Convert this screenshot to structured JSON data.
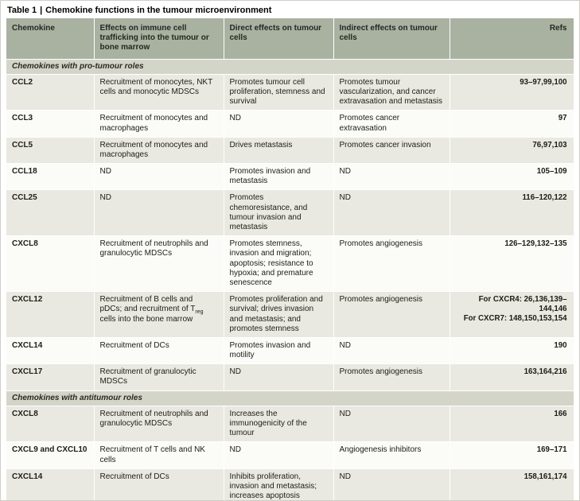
{
  "colors": {
    "header_bg": "#a9b2a1",
    "section_bg": "#d4d5c9",
    "row_shaded_bg": "#e9e9e1",
    "row_light_bg": "#fbfbf7"
  },
  "title": {
    "table_label": "Table 1",
    "separator": "|",
    "text": "Chemokine functions in the tumour microenvironment"
  },
  "table": {
    "headers": [
      "Chemokine",
      "Effects on immune cell trafficking into the tumour or bone marrow",
      "Direct effects on tumour cells",
      "Indirect effects on tumour cells",
      "Refs"
    ],
    "sections": [
      {
        "label": "Chemokines with pro-tumour roles",
        "rows": [
          {
            "chemokine": "CCL2",
            "trafficking": "Recruitment of monocytes, NKT cells and monocytic MDSCs",
            "direct": "Promotes tumour cell proliferation, stemness and survival",
            "indirect": "Promotes tumour vascularization, and cancer extravasation and metastasis",
            "refs": "93–97,99,100"
          },
          {
            "chemokine": "CCL3",
            "trafficking": "Recruitment of monocytes and macrophages",
            "direct": "ND",
            "indirect": "Promotes cancer extravasation",
            "refs": "97"
          },
          {
            "chemokine": "CCL5",
            "trafficking": "Recruitment of monocytes and macrophages",
            "direct": "Drives metastasis",
            "indirect": "Promotes cancer invasion",
            "refs": "76,97,103"
          },
          {
            "chemokine": "CCL18",
            "trafficking": "ND",
            "direct": "Promotes invasion and metastasis",
            "indirect": "ND",
            "refs": "105–109"
          },
          {
            "chemokine": "CCL25",
            "trafficking": "ND",
            "direct": "Promotes chemoresistance, and tumour invasion and metastasis",
            "indirect": "ND",
            "refs": "116–120,122"
          },
          {
            "chemokine": "CXCL8",
            "trafficking": "Recruitment of neutrophils and granulocytic MDSCs",
            "direct": "Promotes stemness, invasion and migration; apoptosis; resistance to hypoxia; and premature senescence",
            "indirect": "Promotes angiogenesis",
            "refs": "126–129,132–135"
          },
          {
            "chemokine": "CXCL12",
            "trafficking": "Recruitment of B cells and pDCs; and recruitment of T{sub}reg{/sub} cells into the bone marrow",
            "direct": "Promotes proliferation and survival; drives invasion and metastasis; and promotes stemness",
            "indirect": "Promotes angiogenesis",
            "refs": "For CXCR4: 26,136,139–144,146\nFor CXCR7: 148,150,153,154"
          },
          {
            "chemokine": "CXCL14",
            "trafficking": "Recruitment of DCs",
            "direct": "Promotes invasion and motility",
            "indirect": "ND",
            "refs": "190"
          },
          {
            "chemokine": "CXCL17",
            "trafficking": "Recruitment of granulocytic MDSCs",
            "direct": "ND",
            "indirect": "Promotes angiogenesis",
            "refs": "163,164,216"
          }
        ]
      },
      {
        "label": "Chemokines with antitumour roles",
        "rows": [
          {
            "chemokine": "CXCL8",
            "trafficking": "Recruitment of neutrophils and granulocytic MDSCs",
            "direct": "Increases the immunogenicity of the tumour",
            "indirect": "ND",
            "refs": "166"
          },
          {
            "chemokine": "CXCL9 and CXCL10",
            "trafficking": "Recruitment of T cells and NK cells",
            "direct": "ND",
            "indirect": "Angiogenesis inhibitors",
            "refs": "169–171"
          },
          {
            "chemokine": "CXCL14",
            "trafficking": "Recruitment of DCs",
            "direct": "Inhibits proliferation, invasion and metastasis; increases apoptosis",
            "indirect": "ND",
            "refs": "158,161,174"
          }
        ]
      }
    ]
  }
}
